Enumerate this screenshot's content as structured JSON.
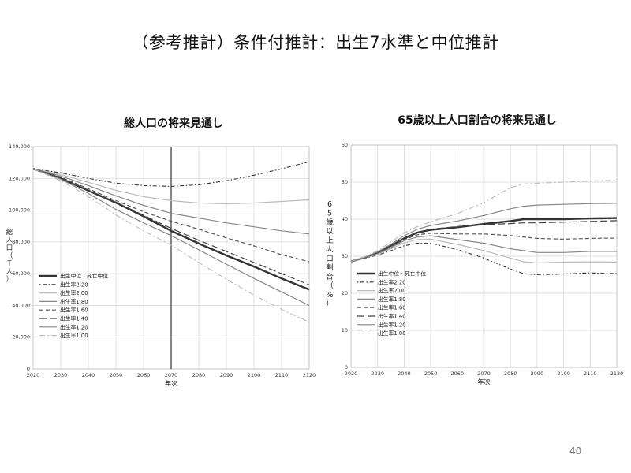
{
  "slide": {
    "title": "（参考推計）条件付推計：出生7水準と中位推計",
    "page_number": "40"
  },
  "chart_data": [
    {
      "type": "line",
      "title": "総人口の将来見通し",
      "xlabel": "年次",
      "ylabel": "総人口（千人）",
      "x": [
        2020,
        2030,
        2040,
        2050,
        2060,
        2070,
        2080,
        2090,
        2100,
        2110,
        2120
      ],
      "xticks": [
        "2020",
        "2030",
        "2040",
        "2050",
        "2060",
        "2070",
        "2080",
        "2090",
        "2100",
        "2110",
        "2120"
      ],
      "ylim": [
        0,
        140000
      ],
      "yticks": [
        "0",
        "20,000",
        "40,000",
        "60,000",
        "80,000",
        "100,000",
        "120,000",
        "140,000"
      ],
      "yticks_values": [
        0,
        20000,
        40000,
        60000,
        80000,
        100000,
        120000,
        140000
      ],
      "vline": 2070,
      "grid": true,
      "legend_position": "bottom-left",
      "series": [
        {
          "name": "出生中位・死亡中位",
          "color": "#333333",
          "width": 2.4,
          "dash": "",
          "values": [
            126100,
            120100,
            112300,
            104700,
            96100,
            87000,
            79000,
            71500,
            64500,
            57000,
            50000
          ]
        },
        {
          "name": "出生率2.20",
          "color": "#333333",
          "width": 1.1,
          "dash": "1.5 2.5 5 2.5",
          "values": [
            126100,
            123500,
            120000,
            117000,
            115500,
            115000,
            116000,
            118500,
            122000,
            126000,
            130500
          ]
        },
        {
          "name": "出生率2.00",
          "color": "#bbbbbb",
          "width": 1.2,
          "dash": "",
          "values": [
            126100,
            122500,
            117500,
            112500,
            108500,
            106000,
            104500,
            104000,
            104500,
            105500,
            106500
          ]
        },
        {
          "name": "出生率1.80",
          "color": "#888888",
          "width": 1.2,
          "dash": "",
          "values": [
            126100,
            121500,
            115500,
            109000,
            103000,
            98000,
            95000,
            92000,
            89500,
            87000,
            85000
          ]
        },
        {
          "name": "出生率1.60",
          "color": "#555555",
          "width": 1.2,
          "dash": "5 3",
          "values": [
            126100,
            120800,
            113500,
            106000,
            99000,
            93000,
            88000,
            82500,
            77500,
            72000,
            67500
          ]
        },
        {
          "name": "出生率1.40",
          "color": "#444444",
          "width": 1.2,
          "dash": "9 4",
          "values": [
            126100,
            120200,
            112500,
            105000,
            96800,
            88500,
            81000,
            74000,
            67000,
            60000,
            53000
          ]
        },
        {
          "name": "出生率1.20",
          "color": "#888888",
          "width": 1.2,
          "dash": "",
          "values": [
            126100,
            119500,
            110500,
            100500,
            92000,
            84000,
            75000,
            66000,
            57000,
            48500,
            40000
          ]
        },
        {
          "name": "出生率1.00",
          "color": "#bbbbbb",
          "width": 1.1,
          "dash": "7 3 2 3",
          "values": [
            126100,
            118500,
            108500,
            97000,
            87000,
            78000,
            67000,
            56500,
            46500,
            37500,
            29500
          ]
        }
      ]
    },
    {
      "type": "line",
      "title": "65歳以上人口割合の将来見通し",
      "xlabel": "年次",
      "ylabel": "65歳以上人口割合（%）",
      "x": [
        2020,
        2025,
        2030,
        2035,
        2040,
        2045,
        2050,
        2060,
        2070,
        2080,
        2085,
        2090,
        2100,
        2110,
        2120
      ],
      "xticks": [
        "2020",
        "2030",
        "2040",
        "2050",
        "2060",
        "2070",
        "2080",
        "2090",
        "2100",
        "2110",
        "2120"
      ],
      "ylim": [
        0,
        60
      ],
      "yticks": [
        "0",
        "10",
        "20",
        "30",
        "40",
        "50",
        "60"
      ],
      "yticks_values": [
        0,
        10,
        20,
        30,
        40,
        50,
        60
      ],
      "vline": 2070,
      "grid": true,
      "legend_position": "bottom-left",
      "series": [
        {
          "name": "出生中位・死亡中位",
          "color": "#333333",
          "width": 2.4,
          "dash": "",
          "values": [
            28.6,
            29.6,
            31.0,
            32.8,
            34.8,
            36.4,
            37.1,
            37.8,
            38.7,
            39.5,
            40.0,
            40.0,
            40.0,
            40.2,
            40.3
          ]
        },
        {
          "name": "出生率2.20",
          "color": "#333333",
          "width": 1.1,
          "dash": "1.5 2.5 5 2.5",
          "values": [
            28.6,
            29.4,
            30.3,
            31.5,
            32.8,
            33.5,
            33.5,
            31.8,
            29.5,
            26.5,
            25.3,
            25.0,
            25.2,
            25.5,
            25.3
          ]
        },
        {
          "name": "出生率2.00",
          "color": "#bbbbbb",
          "width": 1.2,
          "dash": "",
          "values": [
            28.6,
            29.5,
            30.5,
            32.0,
            33.6,
            34.5,
            34.6,
            33.2,
            31.5,
            29.5,
            28.5,
            28.2,
            28.4,
            28.5,
            28.4
          ]
        },
        {
          "name": "出生率1.80",
          "color": "#888888",
          "width": 1.2,
          "dash": "",
          "values": [
            28.6,
            29.5,
            30.7,
            32.3,
            34.2,
            35.2,
            35.5,
            34.5,
            33.5,
            32.0,
            31.5,
            31.0,
            31.0,
            31.3,
            31.3
          ]
        },
        {
          "name": "出生率1.60",
          "color": "#555555",
          "width": 1.2,
          "dash": "5 3",
          "values": [
            28.6,
            29.6,
            30.9,
            32.6,
            34.5,
            35.8,
            36.2,
            36.0,
            36.0,
            35.6,
            35.2,
            34.8,
            34.6,
            34.8,
            34.9
          ]
        },
        {
          "name": "出生率1.40",
          "color": "#444444",
          "width": 1.2,
          "dash": "9 4",
          "values": [
            28.6,
            29.6,
            31.0,
            32.8,
            34.9,
            36.5,
            37.3,
            38.0,
            38.5,
            38.8,
            39.0,
            39.0,
            39.2,
            39.4,
            39.6
          ]
        },
        {
          "name": "出生率1.20",
          "color": "#888888",
          "width": 1.2,
          "dash": "",
          "values": [
            28.6,
            29.7,
            31.2,
            33.2,
            35.5,
            37.3,
            38.3,
            39.5,
            41.0,
            42.8,
            43.5,
            43.8,
            44.0,
            44.2,
            44.3
          ]
        },
        {
          "name": "出生率1.00",
          "color": "#bbbbbb",
          "width": 1.1,
          "dash": "7 3 2 3",
          "values": [
            28.6,
            29.8,
            31.5,
            33.8,
            36.3,
            38.0,
            39.3,
            41.5,
            44.5,
            48.5,
            49.5,
            49.7,
            50.0,
            50.3,
            50.5
          ]
        }
      ]
    }
  ]
}
